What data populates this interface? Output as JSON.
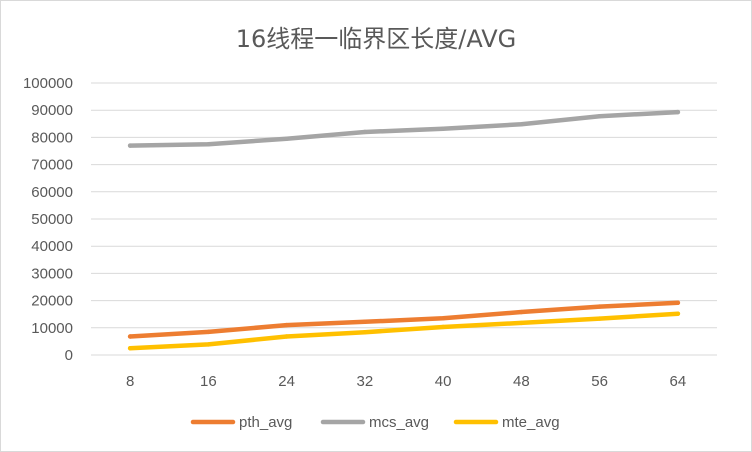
{
  "chart_data": {
    "type": "line",
    "title": "16线程一临界区长度/AVG",
    "categories": [
      "8",
      "16",
      "24",
      "32",
      "40",
      "48",
      "56",
      "64"
    ],
    "ylim": [
      0,
      100000
    ],
    "yticks": [
      0,
      10000,
      20000,
      30000,
      40000,
      50000,
      60000,
      70000,
      80000,
      90000,
      100000
    ],
    "grid": true,
    "legend_position": "bottom",
    "series": [
      {
        "name": "pth_avg",
        "color": "#ED7D31",
        "values": [
          6800,
          8500,
          11000,
          12200,
          13500,
          15800,
          17800,
          19200
        ]
      },
      {
        "name": "mcs_avg",
        "color": "#A5A5A5",
        "values": [
          77000,
          77500,
          79500,
          82000,
          83200,
          84800,
          87800,
          89300
        ]
      },
      {
        "name": "mte_avg",
        "color": "#FFC000",
        "values": [
          2500,
          3900,
          6800,
          8400,
          10300,
          11800,
          13400,
          15200
        ]
      }
    ]
  }
}
